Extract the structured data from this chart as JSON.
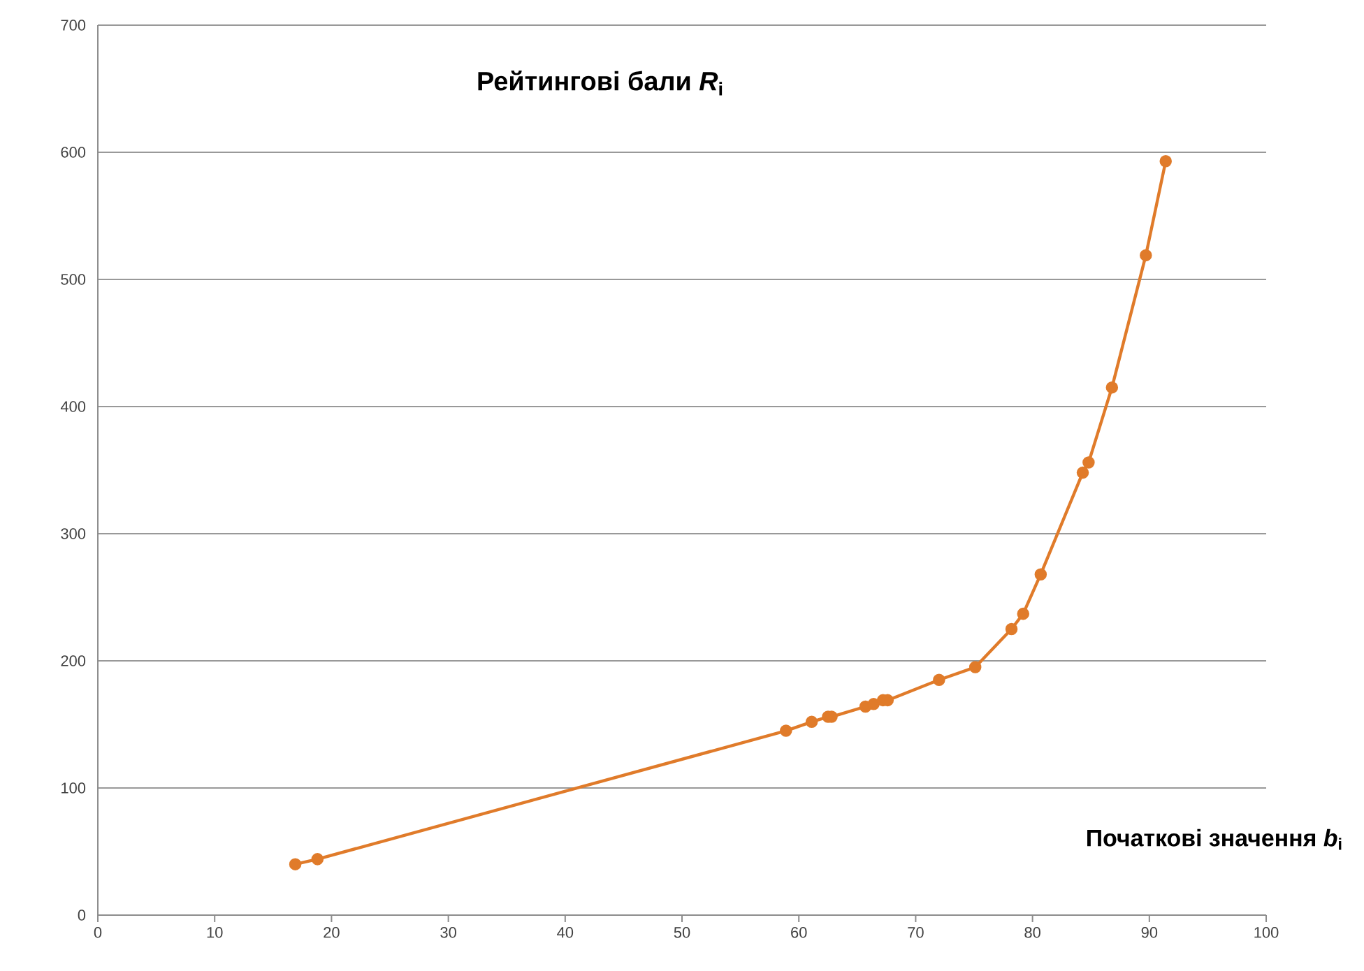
{
  "chart_data": {
    "type": "line",
    "title": "Рейтингові бали *R*$_{i}$",
    "xlabel": "Початкові значення *b*$_{i}$",
    "series": [
      {
        "color": "#e07b2a",
        "x": [
          16.9,
          18.8,
          58.9,
          61.1,
          62.5,
          62.8,
          65.7,
          66.4,
          67.2,
          67.6,
          72,
          75.1,
          78.2,
          79.2,
          80.7,
          84.3,
          84.8,
          86.8,
          89.7,
          91.4
        ],
        "values": [
          40,
          44,
          145,
          152,
          156,
          156,
          164,
          166,
          169,
          169,
          185,
          195,
          225,
          237,
          268,
          348,
          356,
          415,
          519,
          593
        ]
      }
    ],
    "xlim": [
      0,
      100
    ],
    "ylim": [
      0,
      700
    ],
    "xticks": [
      0,
      10,
      20,
      30,
      40,
      50,
      60,
      70,
      80,
      90,
      100
    ],
    "yticks": [
      0,
      100,
      200,
      300,
      400,
      500,
      600,
      700
    ],
    "grid": "y",
    "marker": "circle",
    "line_style": "solid"
  }
}
